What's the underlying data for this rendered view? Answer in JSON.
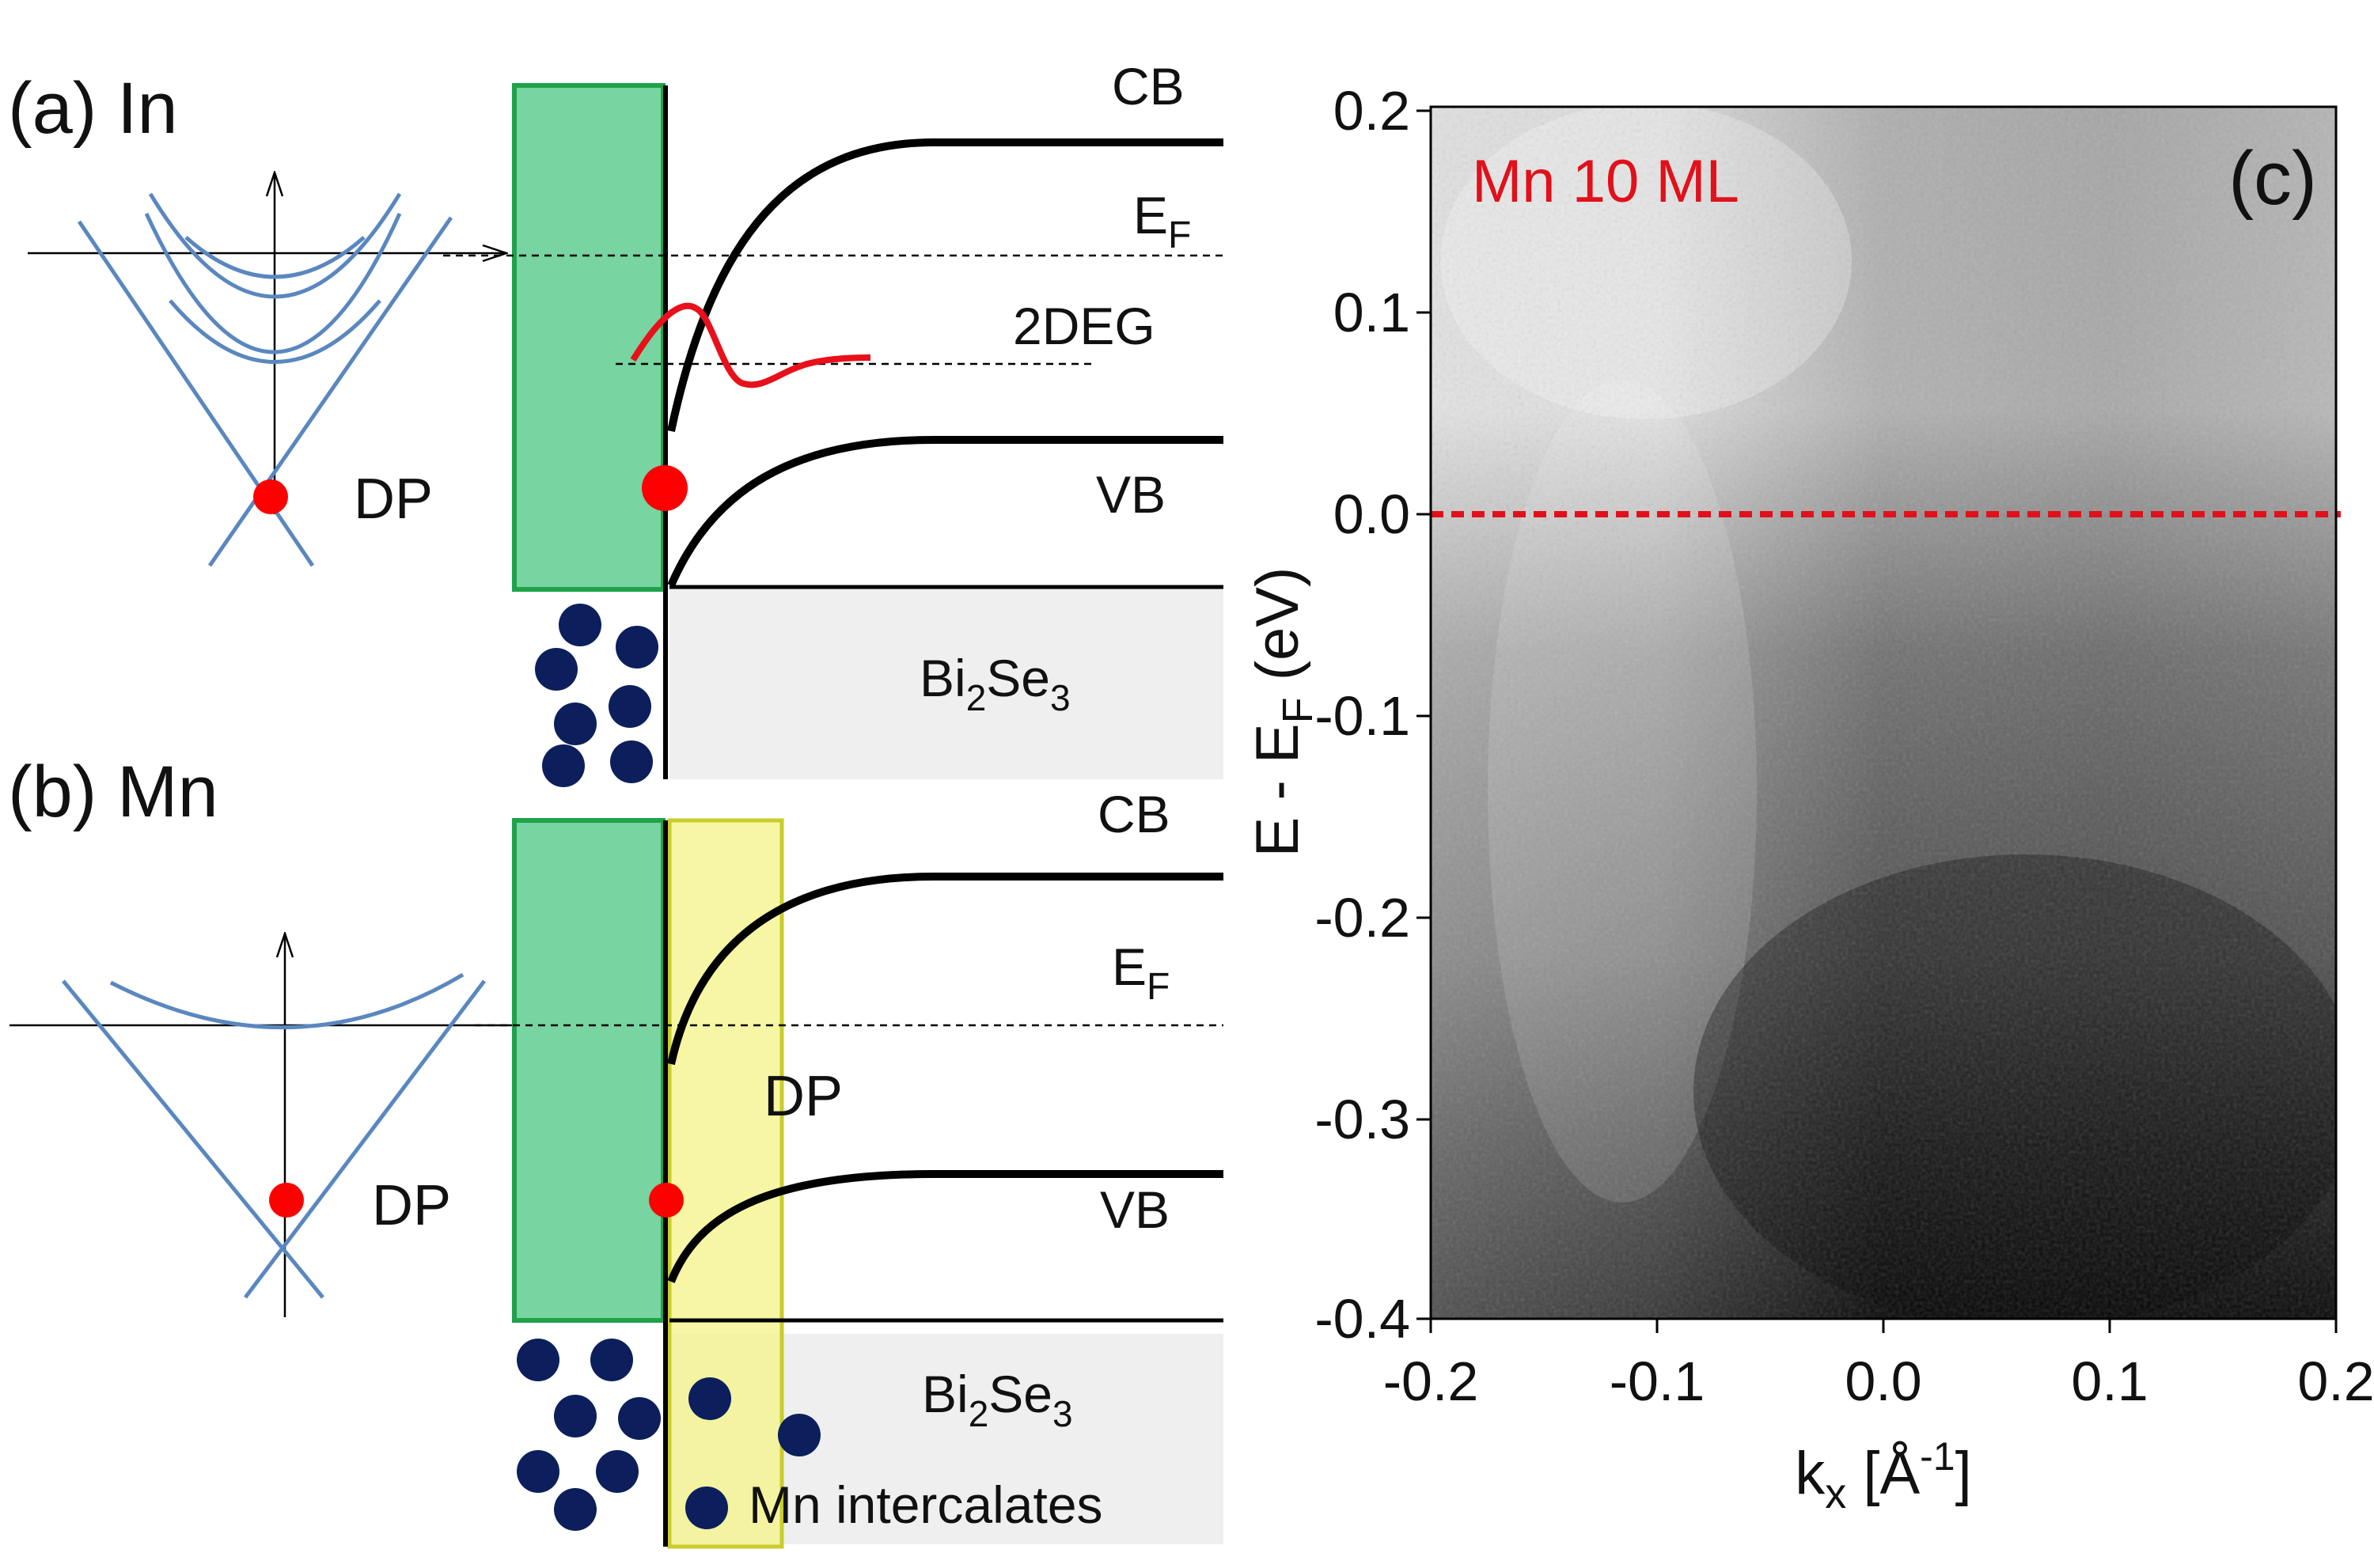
{
  "panel_a": {
    "label": "(a) In",
    "dp_label": "DP",
    "cb_label": "CB",
    "ef_label_main": "E",
    "ef_label_sub": "F",
    "twodeg_label": "2DEG",
    "vb_label": "VB",
    "substrate_main": "Bi",
    "substrate_sub1": "2",
    "substrate_mid": "Se",
    "substrate_sub2": "3"
  },
  "panel_b": {
    "label": "(b) Mn",
    "dp_label_left": "DP",
    "dp_label_band": "DP",
    "cb_label": "CB",
    "ef_label_main": "E",
    "ef_label_sub": "F",
    "vb_label": "VB",
    "substrate_main": "Bi",
    "substrate_sub1": "2",
    "substrate_mid": "Se",
    "substrate_sub2": "3",
    "intercalates_label": "Mn intercalates"
  },
  "panel_c": {
    "label": "(c)",
    "annotation": "Mn 10 ML",
    "ylabel_main": "E - E",
    "ylabel_sub": "F",
    "ylabel_unit": " (eV)",
    "xlabel_main": "k",
    "xlabel_sub": "x",
    "xlabel_open": " [Å",
    "xlabel_sup": "-1",
    "xlabel_close": "]",
    "colors": {
      "fermi_line": "#e0111b",
      "annotation": "#e0111b"
    }
  },
  "colors": {
    "metal_green": "#78d4a1",
    "metal_border": "#1fa24a",
    "intercalate_yellow": "#f3f38a",
    "intercalate_border": "#c9cc2a",
    "dispersion_blue": "#5a87bf",
    "dp_red": "#ff0000",
    "atom_navy": "#0c1f5c",
    "substrate_gray": "#efefef"
  },
  "chart_data": {
    "type": "heatmap",
    "title": "Mn 10 ML",
    "xlabel": "kx [Å^-1]",
    "ylabel": "E - EF (eV)",
    "xlim": [
      -0.2,
      0.2
    ],
    "ylim": [
      -0.4,
      0.2
    ],
    "xticks": [
      "-0.2",
      "-0.1",
      "0.0",
      "0.1",
      "0.2"
    ],
    "yticks": [
      "0.2",
      "0.1",
      "0.0",
      "-0.1",
      "-0.2",
      "-0.3",
      "-0.4"
    ],
    "annotations": [
      {
        "text": "Fermi level (dashed red)",
        "y": 0.0
      }
    ],
    "grid": false
  }
}
